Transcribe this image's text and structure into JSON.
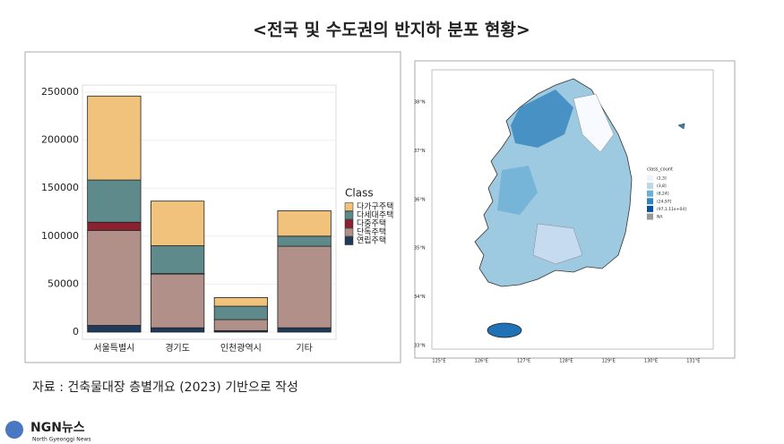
{
  "header": {
    "title": "<전국 및 수도권의 반지하 분포 현황>"
  },
  "chart_data": {
    "type": "stacked_bar",
    "categories": [
      "서울특별시",
      "경기도",
      "인천광역시",
      "기타"
    ],
    "legend_title": "Class",
    "series": [
      {
        "name": "다가구주택",
        "color": "#f0c27b",
        "values": [
          87500,
          46500,
          9000,
          26500
        ]
      },
      {
        "name": "다세대주택",
        "color": "#5f8a8b",
        "values": [
          44000,
          29000,
          14000,
          10500
        ]
      },
      {
        "name": "다중주택",
        "color": "#8c2230",
        "values": [
          8500,
          500,
          0,
          0
        ]
      },
      {
        "name": "단독주택",
        "color": "#b09088",
        "values": [
          99000,
          56000,
          11500,
          85000
        ]
      },
      {
        "name": "연립주택",
        "color": "#1f3a5a",
        "values": [
          7000,
          4500,
          1500,
          4500
        ]
      }
    ],
    "ylim": [
      0,
      250000
    ],
    "yticks": [
      0,
      50000,
      100000,
      150000,
      200000,
      250000
    ],
    "grid": true
  },
  "map": {
    "lat_labels": [
      "38°N",
      "37°N",
      "36°N",
      "35°N",
      "34°N",
      "33°N"
    ],
    "lon_labels": [
      "125°E",
      "126°E",
      "127°E",
      "128°E",
      "129°E",
      "130°E",
      "131°E"
    ],
    "legend_title": "class_count",
    "legend": [
      "(1,3]",
      "(3,8]",
      "(8,24]",
      "(24,97]",
      "(97,1.11e+04]",
      "NA"
    ]
  },
  "source": "자료 : 건축물대장 층별개요 (2023) 기반으로 작성",
  "logo": {
    "name": "NGN뉴스",
    "subtitle": "North Gyeonggi News"
  }
}
